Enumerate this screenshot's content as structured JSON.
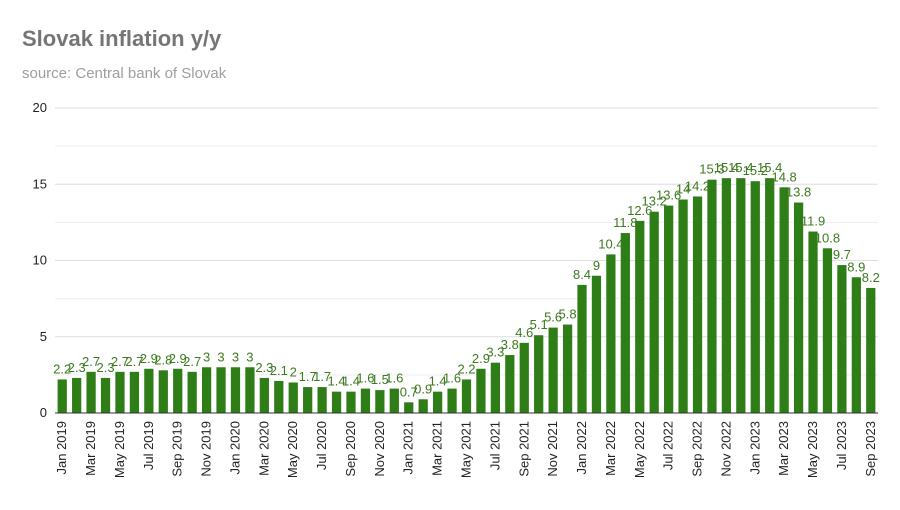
{
  "title": "Slovak inflation y/y",
  "subtitle": "source: Central bank of Slovak",
  "colors": {
    "bar": "#2e7d17",
    "label": "#3d7a1f",
    "grid": "#dddddd",
    "minor_grid": "#eeeeee",
    "axis": "#333333"
  },
  "chart_data": {
    "type": "bar",
    "title": "Slovak inflation y/y",
    "subtitle": "source: Central bank of Slovak",
    "xlabel": "",
    "ylabel": "",
    "ylim": [
      0,
      20
    ],
    "yticks": [
      0,
      5,
      10,
      15,
      20
    ],
    "grid": true,
    "legend": "none",
    "categories": [
      "Jan 2019",
      "Feb 2019",
      "Mar 2019",
      "Apr 2019",
      "May 2019",
      "Jun 2019",
      "Jul 2019",
      "Aug 2019",
      "Sep 2019",
      "Oct 2019",
      "Nov 2019",
      "Dec 2019",
      "Jan 2020",
      "Feb 2020",
      "Mar 2020",
      "Apr 2020",
      "May 2020",
      "Jun 2020",
      "Jul 2020",
      "Aug 2020",
      "Sep 2020",
      "Oct 2020",
      "Nov 2020",
      "Dec 2020",
      "Jan 2021",
      "Feb 2021",
      "Mar 2021",
      "Apr 2021",
      "May 2021",
      "Jun 2021",
      "Jul 2021",
      "Aug 2021",
      "Sep 2021",
      "Oct 2021",
      "Nov 2021",
      "Dec 2021",
      "Jan 2022",
      "Feb 2022",
      "Mar 2022",
      "Apr 2022",
      "May 2022",
      "Jun 2022",
      "Jul 2022",
      "Aug 2022",
      "Sep 2022",
      "Oct 2022",
      "Nov 2022",
      "Dec 2022",
      "Jan 2023",
      "Feb 2023",
      "Mar 2023",
      "Apr 2023",
      "May 2023",
      "Jun 2023",
      "Jul 2023",
      "Aug 2023",
      "Sep 2023"
    ],
    "tick_labels": [
      "Jan 2019",
      "Mar 2019",
      "May 2019",
      "Jul 2019",
      "Sep 2019",
      "Nov 2019",
      "Jan 2020",
      "Mar 2020",
      "May 2020",
      "Jul 2020",
      "Sep 2020",
      "Nov 2020",
      "Jan 2021",
      "Mar 2021",
      "May 2021",
      "Jul 2021",
      "Sep 2021",
      "Nov 2021",
      "Jan 2022",
      "Mar 2022",
      "May 2022",
      "Jul 2022",
      "Sep 2022",
      "Nov 2022",
      "Jan 2023",
      "Mar 2023",
      "May 2023",
      "Jul 2023",
      "Sep 2023"
    ],
    "values": [
      2.2,
      2.3,
      2.7,
      2.3,
      2.7,
      2.7,
      2.9,
      2.8,
      2.9,
      2.7,
      3.0,
      3.0,
      3.0,
      3.0,
      2.3,
      2.1,
      2.0,
      1.7,
      1.7,
      1.4,
      1.4,
      1.6,
      1.5,
      1.6,
      0.7,
      0.9,
      1.4,
      1.6,
      2.2,
      2.9,
      3.3,
      3.8,
      4.6,
      5.1,
      5.6,
      5.8,
      8.4,
      9.0,
      10.4,
      11.8,
      12.6,
      13.2,
      13.6,
      14.0,
      14.2,
      15.3,
      15.4,
      15.4,
      15.2,
      15.4,
      14.8,
      13.8,
      11.9,
      10.8,
      9.7,
      8.9,
      8.2
    ],
    "labels": [
      "2.2",
      "2.3",
      "2.7",
      "2.3",
      "2.7",
      "2.7",
      "2.9",
      "2.8",
      "2.9",
      "2.7",
      "3",
      "3",
      "3",
      "3",
      "2.3",
      "2.1",
      "2",
      "1.7",
      "1.7",
      "1.4",
      "1.4",
      "1.6",
      "1.5",
      "1.6",
      "0.7",
      "0.9",
      "1.4",
      "1.6",
      "2.2",
      "2.9",
      "3.3",
      "3.8",
      "4.6",
      "5.1",
      "5.6",
      "5.8",
      "8.4",
      "9",
      "10.4",
      "11.8",
      "12.6",
      "13.2",
      "13.6",
      "14",
      "14.2",
      "15.3",
      "15.4",
      "15.4",
      "15.2",
      "15.4",
      "14.8",
      "13.8",
      "11.9",
      "10.8",
      "9.7",
      "8.9",
      "8.2"
    ]
  }
}
